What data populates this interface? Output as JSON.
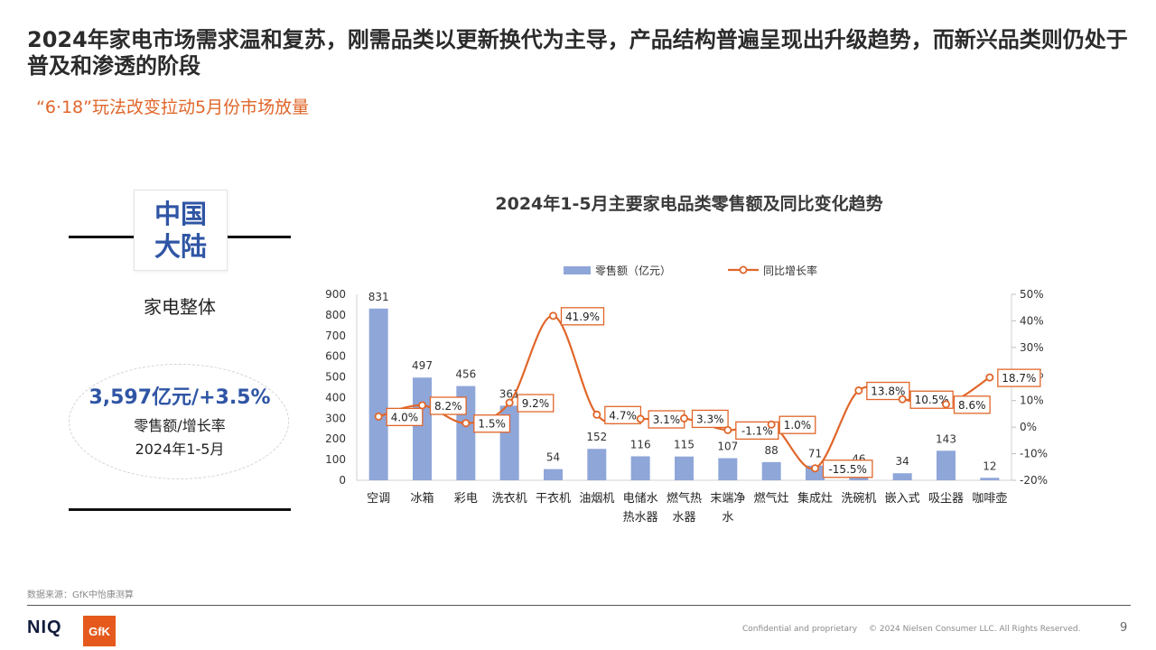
{
  "slide": {
    "title": "2024年家电市场需求温和复苏，刚需品类以更新换代为主导，产品结构普遍呈现出升级趋势，而新兴品类则仍处于普及和渗透的阶段",
    "subtitle": "“6·18”玩法改变拉动5月份市场放量",
    "region": {
      "line1": "中国",
      "line2": "大陆"
    },
    "overall_label": "家电整体",
    "summary": {
      "value": "3,597亿元/+3.5%",
      "caption": "零售额/增长率",
      "period": "2024年1-5月"
    },
    "source": "数据来源：GfK中怡康测算",
    "footer": {
      "logo_niq": "NIQ",
      "logo_gfk": "GfK",
      "confidential": "Confidential and proprietary",
      "copyright": "© 2024 Nielsen Consumer LLC. All Rights Reserved.",
      "page": "9"
    }
  },
  "chart_data": {
    "type": "bar",
    "title": "2024年1-5月主要家电品类零售额及同比变化趋势",
    "categories": [
      "空调",
      "冰箱",
      "彩电",
      "洗衣机",
      "干衣机",
      "油烟机",
      "电储水热水器",
      "燃气热水器",
      "末端净水",
      "燃气灶",
      "集成灶",
      "洗碗机",
      "嵌入式",
      "吸尘器",
      "咖啡壶"
    ],
    "category_lines": [
      [
        "空调"
      ],
      [
        "冰箱"
      ],
      [
        "彩电"
      ],
      [
        "洗衣机"
      ],
      [
        "干衣机"
      ],
      [
        "油烟机"
      ],
      [
        "电储水",
        "热水器"
      ],
      [
        "燃气热",
        "水器"
      ],
      [
        "末端净",
        "水"
      ],
      [
        "燃气灶"
      ],
      [
        "集成灶"
      ],
      [
        "洗碗机"
      ],
      [
        "嵌入式"
      ],
      [
        "吸尘器"
      ],
      [
        "咖啡壶"
      ]
    ],
    "series": [
      {
        "name": "零售额（亿元）",
        "type": "bar",
        "axis": "left",
        "color": "#8fa6d9",
        "values": [
          831,
          497,
          456,
          361,
          54,
          152,
          116,
          115,
          107,
          88,
          71,
          46,
          34,
          143,
          12
        ]
      },
      {
        "name": "同比增长率",
        "type": "line",
        "axis": "right",
        "color": "#e0662a",
        "values": [
          4.0,
          8.2,
          1.5,
          9.2,
          41.9,
          4.7,
          3.1,
          3.3,
          -1.1,
          1.0,
          -15.5,
          13.8,
          10.5,
          8.6,
          18.7
        ],
        "labels": [
          "4.0%",
          "8.2%",
          "1.5%",
          "9.2%",
          "41.9%",
          "4.7%",
          "3.1%",
          "3.3%",
          "-1.1%",
          "1.0%",
          "-15.5%",
          "13.8%",
          "10.5%",
          "8.6%",
          "18.7%"
        ]
      }
    ],
    "left_axis": {
      "ylim": [
        0,
        900
      ],
      "ticks": [
        0,
        100,
        200,
        300,
        400,
        500,
        600,
        700,
        800,
        900
      ]
    },
    "right_axis": {
      "ylim": [
        -20,
        50
      ],
      "ticks": [
        -20,
        -10,
        0,
        10,
        20,
        30,
        40,
        50
      ],
      "tick_labels": [
        "-20%",
        "-10%",
        "0%",
        "10%",
        "20%",
        "30%",
        "40%",
        "50%"
      ]
    },
    "grid": false,
    "legend_placement": "top-center"
  }
}
